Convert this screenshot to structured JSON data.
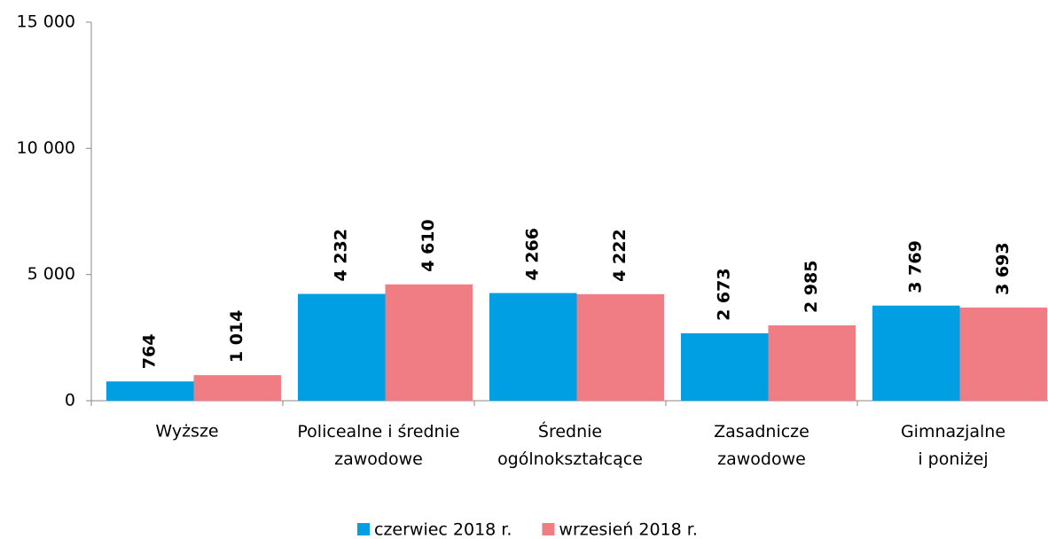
{
  "chart_data": {
    "type": "bar",
    "categories": [
      "Wyższe",
      "Policealne i średnie\nzawodowe",
      "Średnie\nogólnokształcące",
      "Zasadnicze\nzawodowe",
      "Gimnazjalne\ni poniżej"
    ],
    "series": [
      {
        "name": "czerwiec 2018 r.",
        "color": "#009fe3",
        "values": [
          764,
          4232,
          4266,
          2673,
          3769
        ],
        "value_labels": [
          "764",
          "4 232",
          "4 266",
          "2 673",
          "3 769"
        ]
      },
      {
        "name": "wrzesień 2018 r.",
        "color": "#f07c84",
        "values": [
          1014,
          4610,
          4222,
          2985,
          3693
        ],
        "value_labels": [
          "1 014",
          "4 610",
          "4 222",
          "2 985",
          "3 693"
        ]
      }
    ],
    "ylim": [
      0,
      15000
    ],
    "yticks": [
      0,
      {
        "value": 5000,
        "label": "5 000"
      },
      {
        "value": 10000,
        "label": "10 000"
      },
      {
        "value": 15000,
        "label": "15 000"
      }
    ],
    "legend": "bottom"
  }
}
